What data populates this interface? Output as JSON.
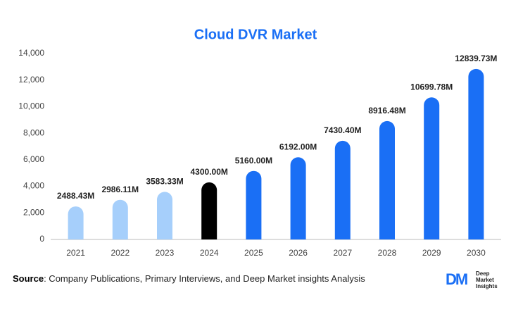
{
  "chart_data": {
    "type": "bar",
    "title": "Cloud DVR Market",
    "categories": [
      "2021",
      "2022",
      "2023",
      "2024",
      "2025",
      "2026",
      "2027",
      "2028",
      "2029",
      "2030"
    ],
    "values": [
      2488.43,
      2986.11,
      3583.33,
      4300.0,
      5160.0,
      6192.0,
      7430.4,
      8916.48,
      10699.78,
      12839.73
    ],
    "value_labels": [
      "2488.43M",
      "2986.11M",
      "3583.33M",
      "4300.00M",
      "5160.00M",
      "6192.00M",
      "7430.40M",
      "8916.48M",
      "10699.78M",
      "12839.73M"
    ],
    "colors": [
      "#a6cffb",
      "#a6cffb",
      "#a6cffb",
      "#000000",
      "#1a6ff5",
      "#1a6ff5",
      "#1a6ff5",
      "#1a6ff5",
      "#1a6ff5",
      "#1a6ff5"
    ],
    "ylim": [
      0,
      14000
    ],
    "yticks": [
      0,
      {
        "value": 2000,
        "label": "2,000"
      },
      {
        "value": 4000,
        "label": "4,000"
      },
      {
        "value": 6000,
        "label": "6,000"
      },
      {
        "value": 8000,
        "label": "8,000"
      },
      {
        "value": 10000,
        "label": "10,000"
      },
      {
        "value": 12000,
        "label": "12,000"
      },
      {
        "value": 14000,
        "label": "14,000"
      }
    ],
    "grid": false
  },
  "footer": {
    "source_label": "Source",
    "source_text": ": Company Publications, Primary Interviews, and Deep Market insights Analysis"
  },
  "logo": {
    "mark": "DM",
    "lines": [
      "Deep",
      "Market",
      "Insights"
    ]
  }
}
